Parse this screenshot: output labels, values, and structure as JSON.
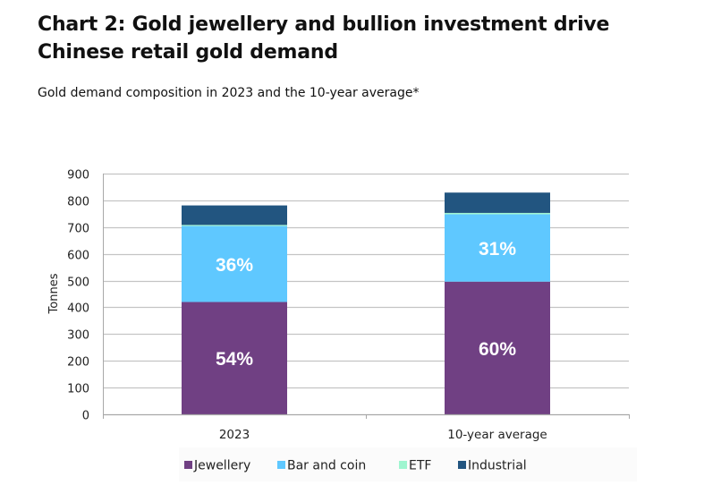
{
  "header": {
    "title_line1": "Chart 2: Gold jewellery and bullion investment drive",
    "title_line2": "Chinese retail gold demand",
    "subtitle": "Gold demand composition in 2023 and the 10-year average*"
  },
  "chart_data": {
    "type": "bar",
    "stacked": true,
    "title": "Chart 2: Gold jewellery and bullion investment drive Chinese retail gold demand",
    "subtitle": "Gold demand composition in 2023 and the 10-year average*",
    "xlabel": "",
    "ylabel": "Tonnes",
    "ylim": [
      0,
      900
    ],
    "yticks": [
      0,
      100,
      200,
      300,
      400,
      500,
      600,
      700,
      800,
      900
    ],
    "grid": true,
    "legend_position": "bottom",
    "categories": [
      "2023",
      "10-year average"
    ],
    "series": [
      {
        "name": "Jewellery",
        "color": "#704083",
        "values": [
          420,
          496
        ],
        "labels": [
          "54%",
          "60%"
        ]
      },
      {
        "name": "Bar and coin",
        "color": "#5FC8FF",
        "values": [
          284,
          252
        ],
        "labels": [
          "36%",
          "31%"
        ]
      },
      {
        "name": "ETF",
        "color": "#9FF5D0",
        "values": [
          4,
          5
        ],
        "labels": [
          "",
          ""
        ]
      },
      {
        "name": "Industrial",
        "color": "#225580",
        "values": [
          73,
          76
        ],
        "labels": [
          "",
          ""
        ]
      }
    ]
  }
}
